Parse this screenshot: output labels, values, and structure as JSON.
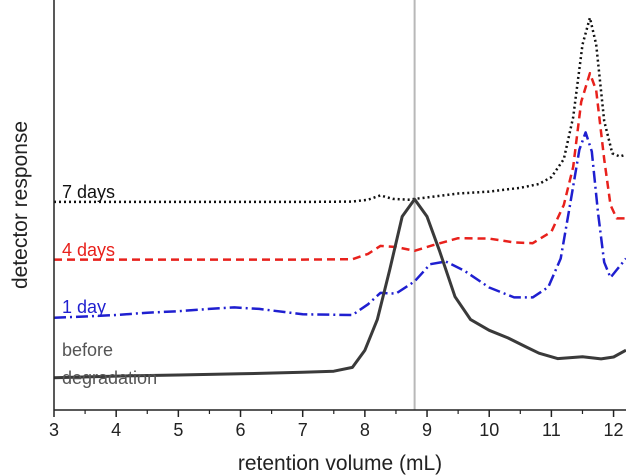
{
  "chart_data": {
    "type": "line",
    "xlabel": "retention volume (mL)",
    "ylabel": "detector response",
    "xlim": [
      3,
      12.2
    ],
    "ylim": [
      0,
      1
    ],
    "x_ticks": [
      "3",
      "4",
      "5",
      "6",
      "7",
      "8",
      "9",
      "10",
      "11",
      "12"
    ],
    "grid": false,
    "reference_line_x": 8.8,
    "series": [
      {
        "name": "7 days",
        "color": "#111111",
        "dash": "2,3",
        "points": [
          [
            3,
            0.508
          ],
          [
            4,
            0.508
          ],
          [
            5,
            0.508
          ],
          [
            6,
            0.508
          ],
          [
            7,
            0.508
          ],
          [
            7.8,
            0.509
          ],
          [
            8.05,
            0.514
          ],
          [
            8.25,
            0.525
          ],
          [
            8.45,
            0.516
          ],
          [
            8.7,
            0.514
          ],
          [
            9,
            0.52
          ],
          [
            9.5,
            0.53
          ],
          [
            10,
            0.535
          ],
          [
            10.5,
            0.545
          ],
          [
            10.8,
            0.555
          ],
          [
            11,
            0.573
          ],
          [
            11.2,
            0.62
          ],
          [
            11.35,
            0.73
          ],
          [
            11.5,
            0.92
          ],
          [
            11.62,
            0.99
          ],
          [
            11.72,
            0.92
          ],
          [
            11.85,
            0.72
          ],
          [
            11.98,
            0.635
          ],
          [
            12.1,
            0.627
          ],
          [
            12.2,
            0.632
          ]
        ]
      },
      {
        "name": "4 days",
        "color": "#e8211c",
        "dash": "8,5",
        "points": [
          [
            3,
            0.357
          ],
          [
            4,
            0.357
          ],
          [
            5,
            0.357
          ],
          [
            6,
            0.357
          ],
          [
            7,
            0.357
          ],
          [
            7.8,
            0.358
          ],
          [
            8.05,
            0.372
          ],
          [
            8.25,
            0.393
          ],
          [
            8.5,
            0.39
          ],
          [
            8.8,
            0.38
          ],
          [
            9.1,
            0.395
          ],
          [
            9.5,
            0.413
          ],
          [
            10,
            0.412
          ],
          [
            10.4,
            0.402
          ],
          [
            10.7,
            0.4
          ],
          [
            11,
            0.43
          ],
          [
            11.2,
            0.5
          ],
          [
            11.35,
            0.6
          ],
          [
            11.48,
            0.77
          ],
          [
            11.62,
            0.845
          ],
          [
            11.72,
            0.8
          ],
          [
            11.85,
            0.62
          ],
          [
            11.95,
            0.5
          ],
          [
            12.05,
            0.465
          ],
          [
            12.2,
            0.465
          ]
        ]
      },
      {
        "name": "1 day",
        "color": "#1f1fd0",
        "dash": "12,4,2,4",
        "points": [
          [
            3,
            0.205
          ],
          [
            3.5,
            0.208
          ],
          [
            4,
            0.212
          ],
          [
            4.5,
            0.218
          ],
          [
            5,
            0.222
          ],
          [
            5.5,
            0.228
          ],
          [
            5.9,
            0.232
          ],
          [
            6.3,
            0.228
          ],
          [
            7,
            0.214
          ],
          [
            7.8,
            0.212
          ],
          [
            8.05,
            0.24
          ],
          [
            8.25,
            0.27
          ],
          [
            8.5,
            0.268
          ],
          [
            8.8,
            0.3
          ],
          [
            9.05,
            0.345
          ],
          [
            9.3,
            0.352
          ],
          [
            9.6,
            0.328
          ],
          [
            10,
            0.284
          ],
          [
            10.4,
            0.258
          ],
          [
            10.7,
            0.258
          ],
          [
            10.95,
            0.285
          ],
          [
            11.15,
            0.36
          ],
          [
            11.3,
            0.5
          ],
          [
            11.45,
            0.645
          ],
          [
            11.55,
            0.69
          ],
          [
            11.65,
            0.64
          ],
          [
            11.75,
            0.48
          ],
          [
            11.85,
            0.35
          ],
          [
            11.95,
            0.31
          ],
          [
            12.05,
            0.33
          ],
          [
            12.2,
            0.36
          ]
        ]
      },
      {
        "name": "before degradation",
        "color": "#3a3a3a",
        "dash": "",
        "points": [
          [
            3,
            0.048
          ],
          [
            4,
            0.052
          ],
          [
            5,
            0.055
          ],
          [
            6,
            0.058
          ],
          [
            7,
            0.062
          ],
          [
            7.5,
            0.065
          ],
          [
            7.8,
            0.075
          ],
          [
            8,
            0.12
          ],
          [
            8.2,
            0.2
          ],
          [
            8.4,
            0.33
          ],
          [
            8.6,
            0.47
          ],
          [
            8.8,
            0.515
          ],
          [
            9,
            0.47
          ],
          [
            9.2,
            0.38
          ],
          [
            9.45,
            0.26
          ],
          [
            9.7,
            0.2
          ],
          [
            10,
            0.172
          ],
          [
            10.3,
            0.152
          ],
          [
            10.6,
            0.128
          ],
          [
            10.8,
            0.112
          ],
          [
            11.1,
            0.098
          ],
          [
            11.5,
            0.103
          ],
          [
            11.8,
            0.097
          ],
          [
            12,
            0.102
          ],
          [
            12.2,
            0.12
          ]
        ]
      }
    ],
    "series_labels": [
      "7 days",
      "4 days",
      "1 day",
      "before",
      "degradation"
    ]
  }
}
